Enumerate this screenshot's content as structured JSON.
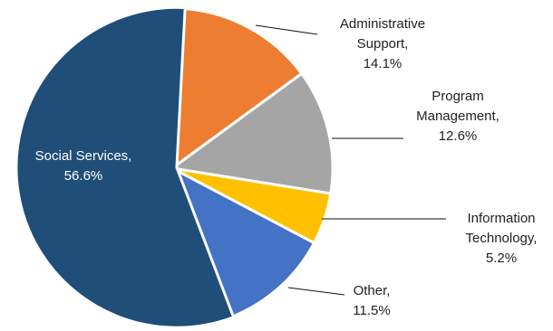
{
  "chart_data": {
    "type": "pie",
    "slices": [
      {
        "label_lines": [
          "Administrative",
          "Support,",
          "14.1%"
        ],
        "category": "Administrative Support",
        "value": 14.1,
        "color": "#ED7D31"
      },
      {
        "label_lines": [
          "Program",
          "Management,",
          "12.6%"
        ],
        "category": "Program Management",
        "value": 12.6,
        "color": "#A5A5A5"
      },
      {
        "label_lines": [
          "Information",
          "Technology,",
          "5.2%"
        ],
        "category": "Information Technology",
        "value": 5.2,
        "color": "#FFC000"
      },
      {
        "label_lines": [
          "Other,",
          "11.5%"
        ],
        "category": "Other",
        "value": 11.5,
        "color": "#4472C4"
      },
      {
        "label_lines": [
          "Social Services,",
          "56.6%"
        ],
        "category": "Social Services",
        "value": 56.6,
        "color": "#1F4E79"
      }
    ],
    "start_angle_deg": 3,
    "direction": "clockwise",
    "legend": "none"
  }
}
